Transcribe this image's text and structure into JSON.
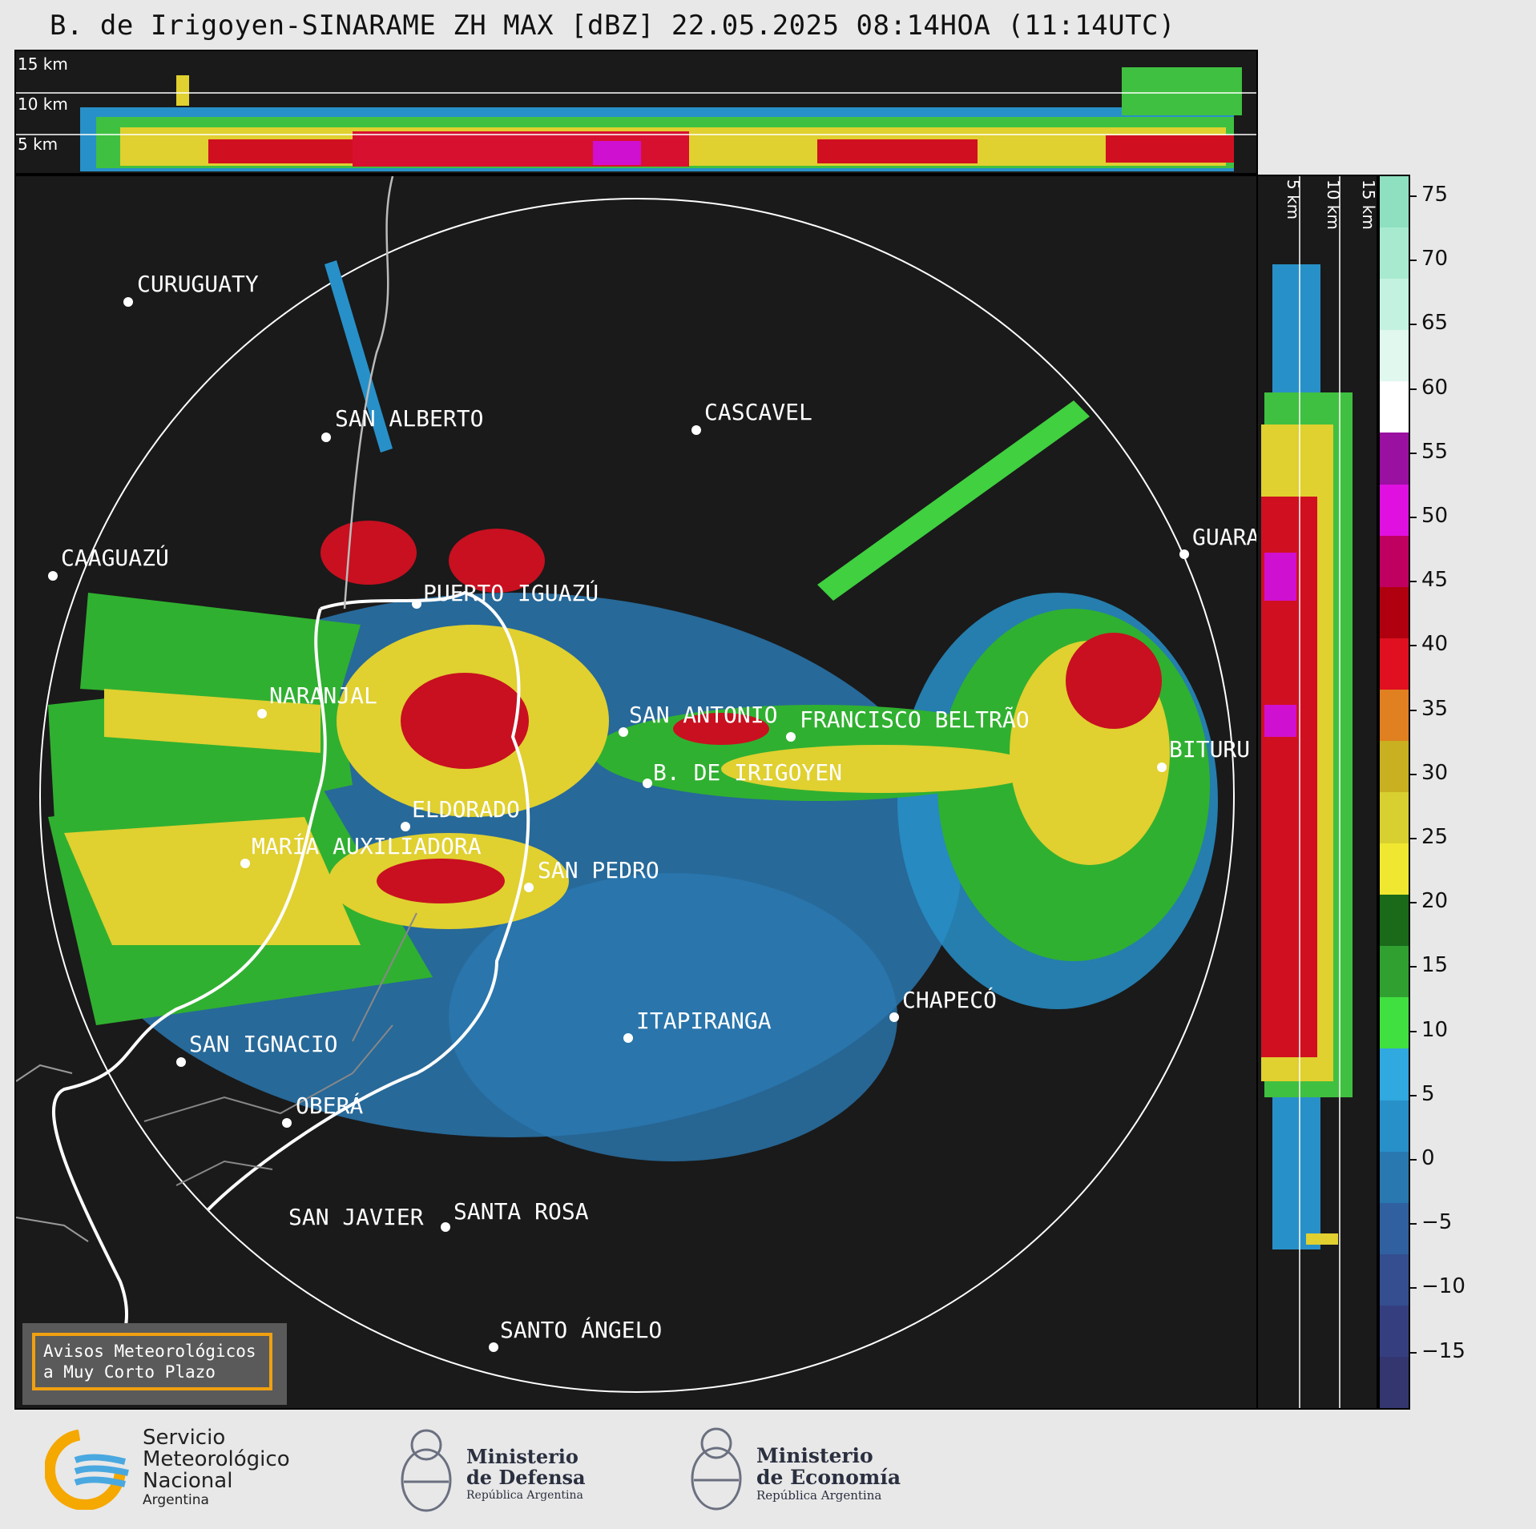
{
  "title": "B. de Irigoyen-SINARAME ZH MAX [dBZ] 22.05.2025 08:14HOA (11:14UTC)",
  "top_panel": {
    "km_labels": [
      "15 km",
      "10 km",
      "5 km"
    ]
  },
  "side_panel": {
    "km_labels": [
      "5 km",
      "10 km",
      "15 km"
    ]
  },
  "cities": [
    {
      "name": "CURUGUATY"
    },
    {
      "name": "SAN ALBERTO"
    },
    {
      "name": "CASCAVEL"
    },
    {
      "name": "CAAGUAZÚ"
    },
    {
      "name": "PUERTO IGUAZÚ"
    },
    {
      "name": "GUARA"
    },
    {
      "name": "NARANJAL"
    },
    {
      "name": "SAN ANTONIO"
    },
    {
      "name": "FRANCISCO BELTRÃO"
    },
    {
      "name": "BITURU"
    },
    {
      "name": "B. DE IRIGOYEN"
    },
    {
      "name": "ELDORADO"
    },
    {
      "name": "MARÍA AUXILIADORA"
    },
    {
      "name": "SAN PEDRO"
    },
    {
      "name": "CHAPECÓ"
    },
    {
      "name": "ITAPIRANGA"
    },
    {
      "name": "SAN IGNACIO"
    },
    {
      "name": "OBERÁ"
    },
    {
      "name": "SAN JAVIER"
    },
    {
      "name": "SANTA ROSA"
    },
    {
      "name": "SANTO ÁNGELO"
    }
  ],
  "colorbar": {
    "ticks": [
      "75",
      "70",
      "65",
      "60",
      "55",
      "50",
      "45",
      "40",
      "35",
      "30",
      "25",
      "20",
      "15",
      "10",
      "5",
      "0",
      "−5",
      "−10",
      "−15"
    ],
    "colors": [
      "#8ee0c0",
      "#a8ead0",
      "#c4f2e0",
      "#e0f8ee",
      "#ffffff",
      "#9a10a0",
      "#e010e0",
      "#c00060",
      "#b00010",
      "#e01020",
      "#e08020",
      "#c8b020",
      "#d8d030",
      "#f0e830",
      "#1a6a1a",
      "#30a030",
      "#40e040",
      "#30a8e0",
      "#2890c8",
      "#2a78b0",
      "#3060a0",
      "#344e90",
      "#353f80",
      "#343670"
    ]
  },
  "aviso": {
    "line1": "Avisos Meteorológicos",
    "line2": "a Muy Corto Plazo"
  },
  "footer": {
    "smn": [
      "Servicio",
      "Meteorológico",
      "Nacional",
      "Argentina"
    ],
    "defensa": [
      "Ministerio",
      "de Defensa",
      "República Argentina"
    ],
    "economia": [
      "Ministerio",
      "de Economía",
      "República Argentina"
    ]
  }
}
